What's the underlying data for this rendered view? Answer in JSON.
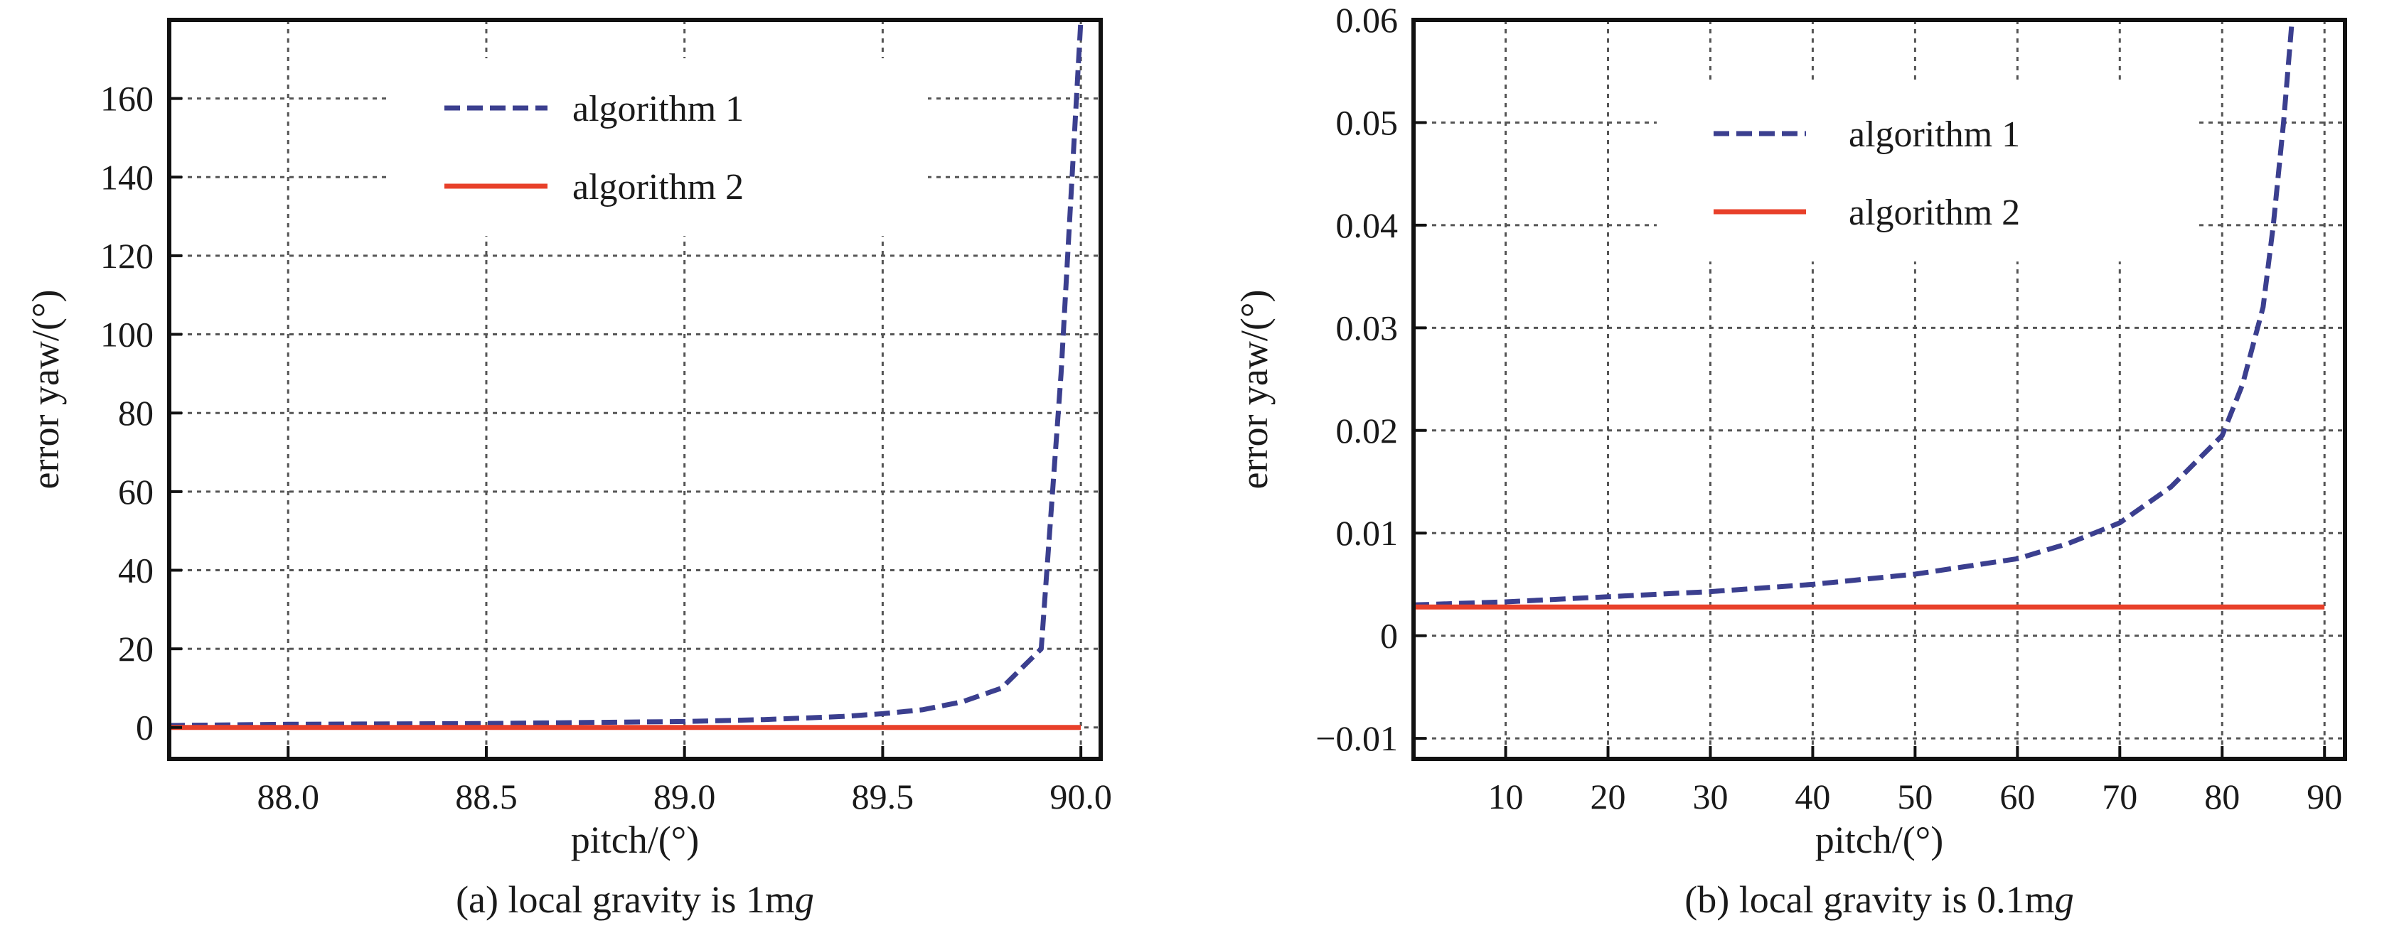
{
  "chart_data": [
    {
      "type": "line",
      "caption": "(a) local gravity is 1m",
      "caption_italic": "g",
      "xlabel": "pitch/(°)",
      "ylabel": "error yaw/(°)",
      "xlim": [
        87.7,
        90.05
      ],
      "ylim": [
        -8,
        180
      ],
      "xticks": [
        88.0,
        88.5,
        89.0,
        89.5,
        90.0
      ],
      "xtick_labels": [
        "88.0",
        "88.5",
        "89.0",
        "89.5",
        "90.0"
      ],
      "yticks": [
        0,
        20,
        40,
        60,
        80,
        100,
        120,
        140,
        160
      ],
      "ytick_labels": [
        "0",
        "20",
        "40",
        "60",
        "80",
        "100",
        "120",
        "140",
        "160"
      ],
      "grid": true,
      "legend_position": "top-center",
      "series": [
        {
          "name": "algorithm 1",
          "style": "dashed",
          "color": "#3b3f8f",
          "x": [
            87.7,
            88.0,
            88.5,
            89.0,
            89.2,
            89.4,
            89.5,
            89.6,
            89.7,
            89.8,
            89.9,
            89.95,
            90.0
          ],
          "y": [
            0.5,
            0.8,
            1.0,
            1.5,
            2.0,
            2.8,
            3.5,
            4.5,
            6.5,
            10,
            20,
            90,
            180
          ]
        },
        {
          "name": "algorithm 2",
          "style": "solid",
          "color": "#e8402a",
          "x": [
            87.7,
            90.0
          ],
          "y": [
            0,
            0
          ]
        }
      ]
    },
    {
      "type": "line",
      "caption": "(b) local gravity is 0.1m",
      "caption_italic": "g",
      "xlabel": "pitch/(°)",
      "ylabel": "error yaw/(°)",
      "xlim": [
        1,
        92
      ],
      "ylim": [
        -0.012,
        0.06
      ],
      "xticks": [
        10,
        20,
        30,
        40,
        50,
        60,
        70,
        80,
        90
      ],
      "xtick_labels": [
        "10",
        "20",
        "30",
        "40",
        "50",
        "60",
        "70",
        "80",
        "90"
      ],
      "yticks": [
        -0.01,
        0,
        0.01,
        0.02,
        0.03,
        0.04,
        0.05,
        0.06
      ],
      "ytick_labels": [
        "−0.01",
        "0",
        "0.01",
        "0.02",
        "0.03",
        "0.04",
        "0.05",
        "0.06"
      ],
      "grid": true,
      "legend_position": "top-center",
      "series": [
        {
          "name": "algorithm 1",
          "style": "dashed",
          "color": "#3b3f8f",
          "x": [
            1,
            10,
            20,
            30,
            40,
            50,
            60,
            65,
            70,
            75,
            80,
            82,
            84,
            85,
            86,
            87
          ],
          "y": [
            0.003,
            0.0033,
            0.0038,
            0.0043,
            0.005,
            0.006,
            0.0075,
            0.009,
            0.011,
            0.0145,
            0.0195,
            0.0245,
            0.032,
            0.04,
            0.05,
            0.062
          ]
        },
        {
          "name": "algorithm 2",
          "style": "solid",
          "color": "#e8402a",
          "x": [
            1,
            90
          ],
          "y": [
            0.0028,
            0.0028
          ]
        }
      ]
    }
  ]
}
